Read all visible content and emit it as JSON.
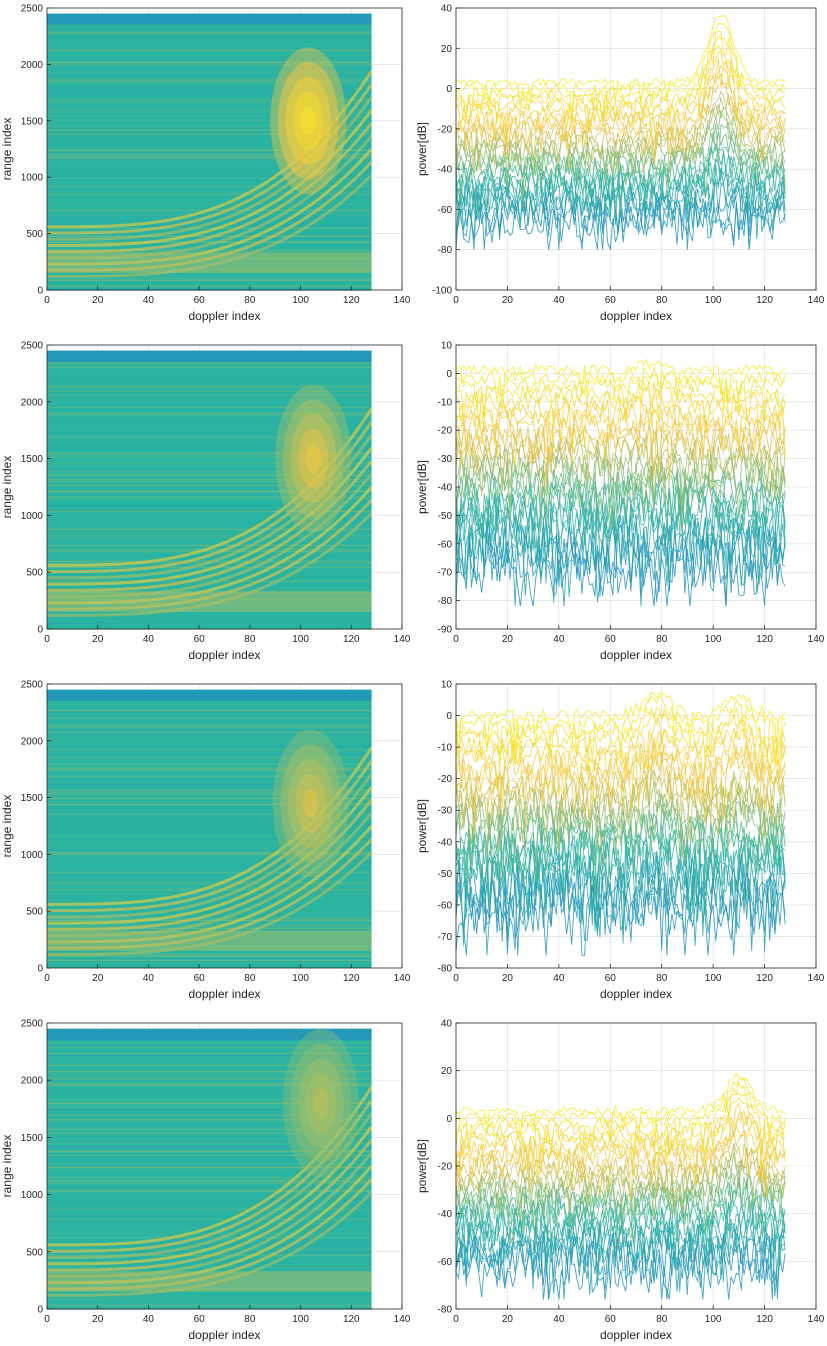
{
  "colors": {
    "low": "#1f8ac4",
    "mid": "#2cb5a0",
    "high": "#f5c542",
    "peak": "#f7f11e",
    "axis": "#262626",
    "grid": "#dcdcdc"
  },
  "chart_data": [
    {
      "type": "heatmap",
      "xlabel": "doppler index",
      "ylabel": "range index",
      "xlim": [
        0,
        140
      ],
      "ylim": [
        0,
        2500
      ],
      "xticks": [
        0,
        20,
        40,
        60,
        80,
        100,
        120,
        140
      ],
      "yticks": [
        0,
        500,
        1000,
        1500,
        2000,
        2500
      ],
      "data_extent": {
        "x": [
          0,
          128
        ],
        "y": [
          0,
          2450
        ]
      },
      "blobs": [
        {
          "x": 103,
          "y": 1500,
          "intensity": 1.0
        }
      ]
    },
    {
      "type": "line",
      "xlabel": "doppler index",
      "ylabel": "power[dB]",
      "xlim": [
        0,
        140
      ],
      "ylim": [
        -100,
        40
      ],
      "xticks": [
        0,
        20,
        40,
        60,
        80,
        100,
        120,
        140
      ],
      "yticks": [
        -100,
        -80,
        -60,
        -40,
        -20,
        0,
        20,
        40
      ],
      "data_extent": [
        0,
        128
      ],
      "peaks": [
        {
          "x": 103,
          "y": 38
        }
      ],
      "floor_db": 5,
      "min_db": -80
    },
    {
      "type": "heatmap",
      "xlabel": "doppler index",
      "ylabel": "range index",
      "xlim": [
        0,
        140
      ],
      "ylim": [
        0,
        2500
      ],
      "xticks": [
        0,
        20,
        40,
        60,
        80,
        100,
        120,
        140
      ],
      "yticks": [
        0,
        500,
        1000,
        1500,
        2000,
        2500
      ],
      "data_extent": {
        "x": [
          0,
          128
        ],
        "y": [
          0,
          2450
        ]
      },
      "blobs": [
        {
          "x": 105,
          "y": 1500,
          "intensity": 0.55
        }
      ]
    },
    {
      "type": "line",
      "xlabel": "doppler index",
      "ylabel": "power[dB]",
      "xlim": [
        0,
        140
      ],
      "ylim": [
        -90,
        10
      ],
      "xticks": [
        0,
        20,
        40,
        60,
        80,
        100,
        120,
        140
      ],
      "yticks": [
        -90,
        -80,
        -70,
        -60,
        -50,
        -40,
        -30,
        -20,
        -10,
        0,
        10
      ],
      "data_extent": [
        0,
        128
      ],
      "peaks": [
        {
          "x": 75,
          "y": 5
        }
      ],
      "floor_db": 3,
      "min_db": -82
    },
    {
      "type": "heatmap",
      "xlabel": "doppler index",
      "ylabel": "range index",
      "xlim": [
        0,
        140
      ],
      "ylim": [
        0,
        2500
      ],
      "xticks": [
        0,
        20,
        40,
        60,
        80,
        100,
        120,
        140
      ],
      "yticks": [
        0,
        500,
        1000,
        1500,
        2000,
        2500
      ],
      "data_extent": {
        "x": [
          0,
          128
        ],
        "y": [
          0,
          2450
        ]
      },
      "blobs": [
        {
          "x": 104,
          "y": 1450,
          "intensity": 0.45
        }
      ]
    },
    {
      "type": "line",
      "xlabel": "doppler index",
      "ylabel": "power[dB]",
      "xlim": [
        0,
        140
      ],
      "ylim": [
        -80,
        10
      ],
      "xticks": [
        0,
        20,
        40,
        60,
        80,
        100,
        120,
        140
      ],
      "yticks": [
        -80,
        -70,
        -60,
        -50,
        -40,
        -30,
        -20,
        -10,
        0,
        10
      ],
      "data_extent": [
        0,
        128
      ],
      "peaks": [
        {
          "x": 78,
          "y": 9
        },
        {
          "x": 110,
          "y": 8
        }
      ],
      "floor_db": 2,
      "min_db": -76
    },
    {
      "type": "heatmap",
      "xlabel": "doppler index",
      "ylabel": "range index",
      "xlim": [
        0,
        140
      ],
      "ylim": [
        0,
        2500
      ],
      "xticks": [
        0,
        20,
        40,
        60,
        80,
        100,
        120,
        140
      ],
      "yticks": [
        0,
        500,
        1000,
        1500,
        2000,
        2500
      ],
      "data_extent": {
        "x": [
          0,
          128
        ],
        "y": [
          0,
          2450
        ]
      },
      "blobs": [
        {
          "x": 108,
          "y": 1800,
          "intensity": 0.3
        }
      ]
    },
    {
      "type": "line",
      "xlabel": "doppler index",
      "ylabel": "power[dB]",
      "xlim": [
        0,
        140
      ],
      "ylim": [
        -80,
        40
      ],
      "xticks": [
        0,
        20,
        40,
        60,
        80,
        100,
        120,
        140
      ],
      "yticks": [
        -80,
        -60,
        -40,
        -20,
        0,
        20,
        40
      ],
      "data_extent": [
        0,
        128
      ],
      "peaks": [
        {
          "x": 110,
          "y": 21
        }
      ],
      "floor_db": 5,
      "min_db": -76
    }
  ]
}
